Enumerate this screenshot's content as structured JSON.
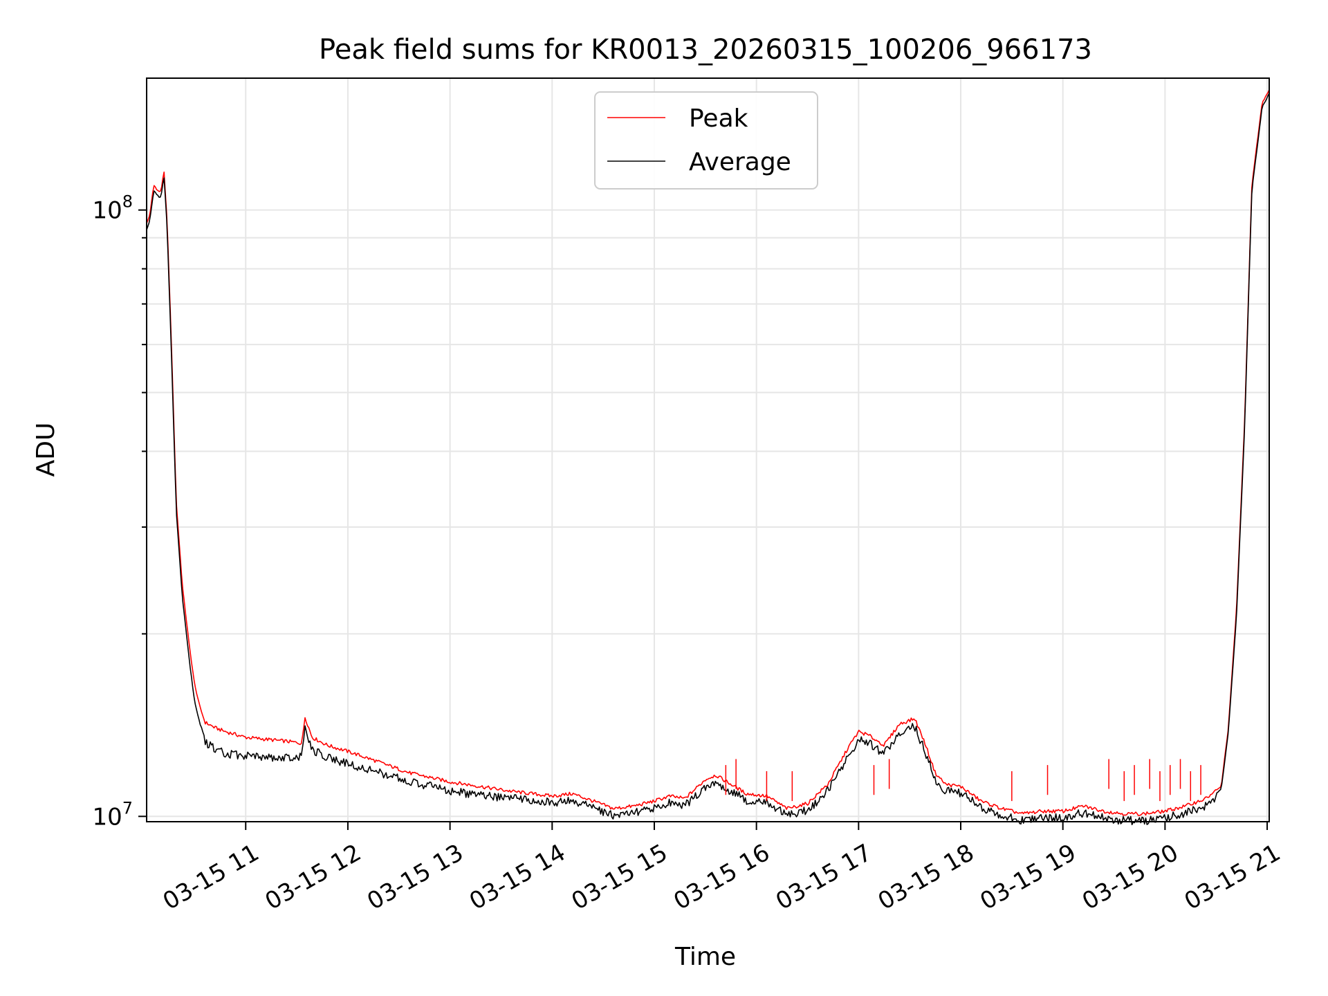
{
  "chart_data": {
    "type": "line",
    "title": "Peak field sums for KR0013_20260315_100206_966173",
    "xlabel": "Time",
    "ylabel": "ADU",
    "yscale": "log",
    "ylim": [
      9800000,
      165000000
    ],
    "xlim_hours": [
      10.03,
      21.02
    ],
    "x_tick_values": [
      11,
      12,
      13,
      14,
      15,
      16,
      17,
      18,
      19,
      20,
      21
    ],
    "x_tick_labels": [
      "03-15 11",
      "03-15 12",
      "03-15 13",
      "03-15 14",
      "03-15 15",
      "03-15 16",
      "03-15 17",
      "03-15 18",
      "03-15 19",
      "03-15 20",
      "03-15 21"
    ],
    "y_tick_values": [
      10000000,
      100000000
    ],
    "y_tick_base": "10",
    "y_tick_exponents": [
      "7",
      "8"
    ],
    "grid": true,
    "legend_position": "top-center",
    "series": [
      {
        "name": "Peak",
        "color": "#ff0000",
        "x_hours": [
          10.03,
          10.06,
          10.1,
          10.13,
          10.17,
          10.2,
          10.23,
          10.27,
          10.32,
          10.38,
          10.45,
          10.5,
          10.55,
          10.6,
          10.7,
          10.8,
          11.0,
          11.2,
          11.4,
          11.55,
          11.58,
          11.65,
          11.8,
          12.0,
          12.3,
          12.6,
          13.0,
          13.3,
          13.6,
          14.0,
          14.2,
          14.4,
          14.6,
          14.8,
          15.0,
          15.15,
          15.3,
          15.5,
          15.6,
          15.75,
          15.9,
          16.1,
          16.3,
          16.5,
          16.7,
          16.9,
          17.0,
          17.1,
          17.25,
          17.4,
          17.55,
          17.65,
          17.75,
          17.85,
          18.0,
          18.2,
          18.4,
          18.6,
          18.8,
          19.0,
          19.2,
          19.4,
          19.6,
          19.8,
          20.0,
          20.2,
          20.4,
          20.55,
          20.62,
          20.7,
          20.78,
          20.85,
          20.95,
          21.02
        ],
        "values": [
          95000000,
          98000000,
          110000000,
          108000000,
          107000000,
          116000000,
          96000000,
          62000000,
          33000000,
          24000000,
          19000000,
          16500000,
          15200000,
          14300000,
          14000000,
          13800000,
          13500000,
          13400000,
          13300000,
          13200000,
          14600000,
          13500000,
          13100000,
          12800000,
          12300000,
          11800000,
          11400000,
          11200000,
          11000000,
          10800000,
          10900000,
          10600000,
          10300000,
          10400000,
          10600000,
          10800000,
          10700000,
          11500000,
          11700000,
          11300000,
          10900000,
          10800000,
          10300000,
          10500000,
          11300000,
          13000000,
          13800000,
          13600000,
          13100000,
          14200000,
          14500000,
          13200000,
          11800000,
          11300000,
          11200000,
          10600000,
          10300000,
          10100000,
          10200000,
          10200000,
          10400000,
          10200000,
          10100000,
          10100000,
          10200000,
          10400000,
          10700000,
          11200000,
          14000000,
          22000000,
          45000000,
          110000000,
          150000000,
          158000000
        ]
      },
      {
        "name": "Average",
        "color": "#000000",
        "x_hours": [
          10.03,
          10.06,
          10.1,
          10.13,
          10.17,
          10.2,
          10.23,
          10.27,
          10.32,
          10.38,
          10.45,
          10.5,
          10.55,
          10.6,
          10.7,
          10.8,
          11.0,
          11.2,
          11.4,
          11.55,
          11.58,
          11.65,
          11.8,
          12.0,
          12.3,
          12.6,
          13.0,
          13.3,
          13.6,
          14.0,
          14.2,
          14.4,
          14.6,
          14.8,
          15.0,
          15.15,
          15.3,
          15.5,
          15.6,
          15.75,
          15.9,
          16.1,
          16.3,
          16.5,
          16.7,
          16.9,
          17.0,
          17.1,
          17.25,
          17.4,
          17.55,
          17.65,
          17.75,
          17.85,
          18.0,
          18.2,
          18.4,
          18.6,
          18.8,
          19.0,
          19.2,
          19.4,
          19.6,
          19.8,
          20.0,
          20.2,
          20.4,
          20.55,
          20.62,
          20.7,
          20.78,
          20.85,
          20.95,
          21.02
        ],
        "values": [
          93000000,
          96000000,
          108000000,
          106000000,
          105000000,
          114000000,
          94000000,
          60000000,
          32000000,
          23000000,
          18000000,
          15500000,
          14300000,
          13500000,
          13100000,
          12900000,
          12800000,
          12700000,
          12700000,
          12800000,
          14200000,
          13100000,
          12700000,
          12400000,
          12000000,
          11600000,
          11200000,
          11000000,
          10900000,
          10700000,
          10800000,
          10500000,
          10200000,
          10300000,
          10500000,
          10700000,
          10600000,
          11300000,
          11500000,
          11200000,
          10800000,
          10700000,
          10200000,
          10400000,
          11200000,
          12800000,
          13600000,
          13400000,
          12900000,
          14000000,
          14300000,
          13000000,
          11700000,
          11200000,
          11100000,
          10500000,
          10200000,
          10000000,
          10100000,
          10100000,
          10300000,
          10100000,
          10000000,
          10000000,
          10100000,
          10300000,
          10600000,
          11100000,
          13800000,
          21500000,
          44000000,
          108000000,
          148000000,
          156000000
        ]
      }
    ]
  }
}
